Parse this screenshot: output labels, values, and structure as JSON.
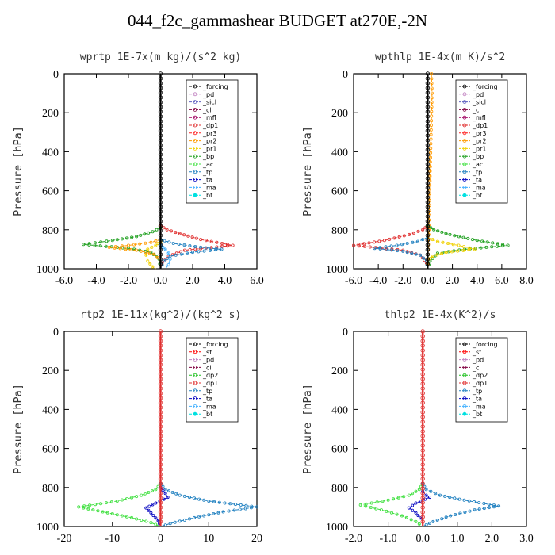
{
  "page_title": "044_f2c_gammashear  BUDGET at270E,-2N",
  "colors": {
    "forcing": "#000000",
    "pd": "#c080c0",
    "sicl": "#6060c0",
    "cl": "#800040",
    "mfl": "#a00060",
    "dp1": "#e03030",
    "pr3": "#ff2020",
    "pr2": "#ff9a00",
    "pr1": "#f0d000",
    "bp": "#20a020",
    "ac": "#40e040",
    "tp": "#2080c0",
    "ta": "#0000c0",
    "ma": "#40b0ff",
    "bt": "#00e0e0",
    "sf": "#ff0000",
    "dp2": "#20c020"
  },
  "chart_data": [
    {
      "type": "line",
      "title": "wprtp  1E-7x(m kg)/(s^2 kg)",
      "ylabel": "Pressure [hPa]",
      "xlim": [
        -6,
        6
      ],
      "ylim": [
        1000,
        0
      ],
      "xticks": [
        "-6.0",
        "-4.0",
        "-2.0",
        "0.0",
        "2.0",
        "4.0",
        "6.0"
      ],
      "yticks": [
        "0",
        "200",
        "400",
        "600",
        "800",
        "1000"
      ],
      "legend_position": "top-right",
      "legend": [
        "_forcing",
        "_pd",
        "_sicl",
        "_cl",
        "_mfl",
        "_dp1",
        "_pr3",
        "_pr2",
        "_pr1",
        "_bp",
        "_ac",
        "_tp",
        "_ta",
        "_ma",
        "_bt"
      ],
      "series": [
        {
          "name": "_dp1",
          "color": "#e03030",
          "points": [
            [
              0,
              780
            ],
            [
              0.4,
              800
            ],
            [
              1.2,
              820
            ],
            [
              2.5,
              850
            ],
            [
              4.5,
              880
            ],
            [
              1.5,
              905
            ],
            [
              0.5,
              935
            ],
            [
              0.1,
              970
            ],
            [
              0,
              1000
            ]
          ]
        },
        {
          "name": "_bp",
          "color": "#20a020",
          "points": [
            [
              0,
              790
            ],
            [
              -0.5,
              810
            ],
            [
              -1.5,
              835
            ],
            [
              -3,
              855
            ],
            [
              -4.8,
              875
            ],
            [
              -2,
              895
            ],
            [
              -0.6,
              915
            ],
            [
              -0.1,
              950
            ],
            [
              0,
              1000
            ]
          ]
        },
        {
          "name": "_pr1",
          "color": "#f0d000",
          "points": [
            [
              0,
              860
            ],
            [
              -0.3,
              880
            ],
            [
              -0.8,
              900
            ],
            [
              -0.9,
              930
            ],
            [
              -0.8,
              960
            ],
            [
              -0.5,
              990
            ],
            [
              -0.3,
              1000
            ]
          ]
        },
        {
          "name": "_pr2",
          "color": "#ff9a00",
          "points": [
            [
              0,
              850
            ],
            [
              -0.6,
              865
            ],
            [
              -2,
              880
            ],
            [
              -3.2,
              890
            ],
            [
              -1.5,
              905
            ],
            [
              -0.4,
              925
            ],
            [
              0,
              960
            ]
          ]
        },
        {
          "name": "_tp",
          "color": "#2080c0",
          "points": [
            [
              0,
              850
            ],
            [
              0.8,
              870
            ],
            [
              2.5,
              890
            ],
            [
              3.8,
              900
            ],
            [
              2,
              915
            ],
            [
              0.6,
              935
            ],
            [
              0.2,
              960
            ],
            [
              0,
              1000
            ]
          ]
        },
        {
          "name": "_ma",
          "color": "#40b0ff",
          "points": [
            [
              0,
              880
            ],
            [
              0.3,
              900
            ],
            [
              0.5,
              920
            ],
            [
              0.6,
              950
            ],
            [
              0.5,
              980
            ],
            [
              0.3,
              1000
            ]
          ]
        },
        {
          "name": "_forcing",
          "color": "#000000",
          "points": [
            [
              0,
              0
            ],
            [
              0,
              1000
            ]
          ]
        }
      ]
    },
    {
      "type": "line",
      "title": "wpthlp  1E-4x(m K)/s^2",
      "ylabel": "Pressure [hPa]",
      "xlim": [
        -6,
        8
      ],
      "ylim": [
        1000,
        0
      ],
      "xticks": [
        "-6.0",
        "-4.0",
        "-2.0",
        "0.0",
        "2.0",
        "4.0",
        "6.0",
        "8.0"
      ],
      "yticks": [
        "0",
        "200",
        "400",
        "600",
        "800",
        "1000"
      ],
      "legend_position": "top-right",
      "legend": [
        "_forcing",
        "_pd",
        "_sicl",
        "_cl",
        "_mfl",
        "_dp1",
        "_pr3",
        "_pr2",
        "_pr1",
        "_bp",
        "_ac",
        "_tp",
        "_ta",
        "_ma",
        "_bt"
      ],
      "series": [
        {
          "name": "_dp1",
          "color": "#e03030",
          "points": [
            [
              0,
              780
            ],
            [
              -0.4,
              800
            ],
            [
              -1.5,
              825
            ],
            [
              -3.5,
              855
            ],
            [
              -6,
              880
            ],
            [
              -2,
              905
            ],
            [
              -0.6,
              930
            ],
            [
              -0.1,
              970
            ],
            [
              0,
              1000
            ]
          ]
        },
        {
          "name": "_bp",
          "color": "#20a020",
          "points": [
            [
              0,
              780
            ],
            [
              0.5,
              800
            ],
            [
              1.8,
              825
            ],
            [
              4,
              855
            ],
            [
              6.5,
              880
            ],
            [
              3,
              900
            ],
            [
              0.8,
              920
            ],
            [
              0.2,
              960
            ],
            [
              0,
              1000
            ]
          ]
        },
        {
          "name": "_pr1",
          "color": "#f0d000",
          "points": [
            [
              0,
              840
            ],
            [
              0.8,
              860
            ],
            [
              2.5,
              880
            ],
            [
              3.8,
              900
            ],
            [
              1.5,
              915
            ],
            [
              0.4,
              935
            ],
            [
              0,
              960
            ]
          ]
        },
        {
          "name": "_tp",
          "color": "#2080c0",
          "points": [
            [
              0,
              840
            ],
            [
              -0.8,
              860
            ],
            [
              -2.5,
              880
            ],
            [
              -4.3,
              895
            ],
            [
              -2,
              910
            ],
            [
              -0.6,
              930
            ],
            [
              -0.1,
              960
            ],
            [
              0,
              1000
            ]
          ]
        },
        {
          "name": "_pr2",
          "color": "#ff9a00",
          "points": [
            [
              0.3,
              0
            ],
            [
              0.35,
              100
            ],
            [
              0.2,
              500
            ],
            [
              0.1,
              800
            ],
            [
              0,
              1000
            ]
          ]
        },
        {
          "name": "_forcing",
          "color": "#000000",
          "points": [
            [
              0,
              0
            ],
            [
              0,
              1000
            ]
          ]
        }
      ]
    },
    {
      "type": "line",
      "title": "rtp2  1E-11x(kg^2)/(kg^2 s)",
      "ylabel": "Pressure [hPa]",
      "xlim": [
        -20,
        20
      ],
      "ylim": [
        1000,
        0
      ],
      "xticks": [
        "-20",
        "-10",
        "0",
        "10",
        "20"
      ],
      "yticks": [
        "0",
        "200",
        "400",
        "600",
        "800",
        "1000"
      ],
      "legend_position": "top-right",
      "legend": [
        "_forcing",
        "_sf",
        "_pd",
        "_cl",
        "_dp2",
        "_dp1",
        "_tp",
        "_ta",
        "_ma",
        "_bt"
      ],
      "series": [
        {
          "name": "_dp1",
          "color": "#40e040",
          "points": [
            [
              0,
              780
            ],
            [
              -1,
              810
            ],
            [
              -4,
              840
            ],
            [
              -9,
              870
            ],
            [
              -17,
              900
            ],
            [
              -12,
              925
            ],
            [
              -6,
              955
            ],
            [
              -2,
              980
            ],
            [
              0,
              1000
            ]
          ]
        },
        {
          "name": "_ma",
          "color": "#2080c0",
          "points": [
            [
              0,
              780
            ],
            [
              1,
              810
            ],
            [
              4,
              840
            ],
            [
              10,
              870
            ],
            [
              20,
              900
            ],
            [
              13,
              925
            ],
            [
              7,
              955
            ],
            [
              2,
              985
            ],
            [
              0,
              1000
            ]
          ]
        },
        {
          "name": "_ta",
          "color": "#0000c0",
          "points": [
            [
              0,
              800
            ],
            [
              1,
              830
            ],
            [
              1.5,
              850
            ],
            [
              -1,
              880
            ],
            [
              -3,
              905
            ],
            [
              -2,
              930
            ],
            [
              -0.5,
              970
            ],
            [
              0,
              1000
            ]
          ]
        },
        {
          "name": "_forcing",
          "color": "#e03030",
          "points": [
            [
              0,
              0
            ],
            [
              0,
              1000
            ]
          ]
        }
      ]
    },
    {
      "type": "line",
      "title": "thlp2  1E-4x(K^2)/s",
      "ylabel": "Pressure [hPa]",
      "xlim": [
        -2,
        3
      ],
      "ylim": [
        1000,
        0
      ],
      "xticks": [
        "-2.0",
        "-1.0",
        "0.0",
        "1.0",
        "2.0",
        "3.0"
      ],
      "yticks": [
        "0",
        "200",
        "400",
        "600",
        "800",
        "1000"
      ],
      "legend_position": "top-right",
      "legend": [
        "_forcing",
        "_sf",
        "_pd",
        "_cl",
        "_dp2",
        "_dp1",
        "_tp",
        "_ta",
        "_ma",
        "_bt"
      ],
      "series": [
        {
          "name": "_dp1",
          "color": "#40e040",
          "points": [
            [
              0,
              780
            ],
            [
              -0.1,
              810
            ],
            [
              -0.4,
              840
            ],
            [
              -1,
              865
            ],
            [
              -1.8,
              890
            ],
            [
              -1.2,
              915
            ],
            [
              -0.6,
              945
            ],
            [
              -0.2,
              975
            ],
            [
              0,
              1000
            ]
          ]
        },
        {
          "name": "_ma",
          "color": "#2080c0",
          "points": [
            [
              0,
              780
            ],
            [
              0.1,
              810
            ],
            [
              0.5,
              840
            ],
            [
              1.2,
              865
            ],
            [
              2.2,
              895
            ],
            [
              1.5,
              915
            ],
            [
              0.8,
              945
            ],
            [
              0.3,
              975
            ],
            [
              0,
              1000
            ]
          ]
        },
        {
          "name": "_ta",
          "color": "#0000c0",
          "points": [
            [
              0,
              820
            ],
            [
              0.1,
              840
            ],
            [
              0.2,
              850
            ],
            [
              -0.2,
              880
            ],
            [
              -0.4,
              905
            ],
            [
              -0.2,
              930
            ],
            [
              0,
              970
            ]
          ]
        },
        {
          "name": "_forcing",
          "color": "#e03030",
          "points": [
            [
              0,
              0
            ],
            [
              0,
              1000
            ]
          ]
        }
      ]
    }
  ]
}
